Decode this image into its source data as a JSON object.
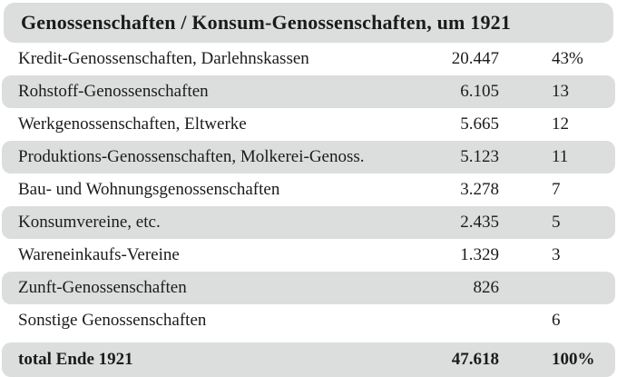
{
  "title": "Genossenschaften / Konsum-Genossenschaften, um 1921",
  "colors": {
    "stripe": "#dcdddd",
    "background": "#ffffff",
    "text": "#1b1b1b"
  },
  "chart_data": {
    "type": "table",
    "title": "Genossenschaften / Konsum-Genossenschaften, um 1921",
    "columns": [
      "category",
      "count",
      "share_percent"
    ],
    "rows": [
      {
        "category": "Kredit-Genossenschaften, Darlehnskassen",
        "count": "20.447",
        "share": "43%"
      },
      {
        "category": "Rohstoff-Genossenschaften",
        "count": "6.105",
        "share": "13"
      },
      {
        "category": "Werkgenossenschaften, Eltwerke",
        "count": "5.665",
        "share": "12"
      },
      {
        "category": "Produktions-Genossenschaften, Molkerei-Genoss.",
        "count": "5.123",
        "share": "11"
      },
      {
        "category": "Bau- und Wohnungsgenossenschaften",
        "count": "3.278",
        "share": "7"
      },
      {
        "category": "Konsumvereine, etc.",
        "count": "2.435",
        "share": "5"
      },
      {
        "category": "Wareneinkaufs-Vereine",
        "count": "1.329",
        "share": "3"
      },
      {
        "category": "Zunft-Genossenschaften",
        "count": "826",
        "share": ""
      },
      {
        "category": "Sonstige Genossenschaften",
        "count": "",
        "share": "6"
      }
    ],
    "total": {
      "category": "total Ende 1921",
      "count": "47.618",
      "share": "100%"
    }
  }
}
